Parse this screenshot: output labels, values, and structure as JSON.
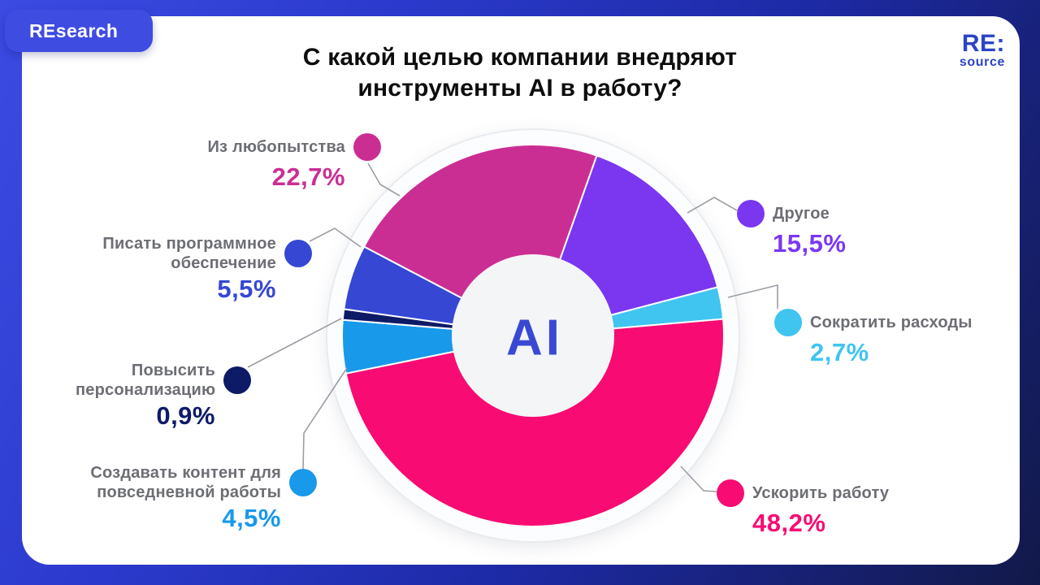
{
  "page": {
    "badge": "REsearch",
    "title_line1": "С какой целью компании внедряют",
    "title_line2": "инструменты AI в работу?",
    "logo_top": "RE:",
    "logo_bottom": "source"
  },
  "chart_data": {
    "type": "pie",
    "donut": true,
    "title": "С какой целью компании внедряют инструменты AI в работу?",
    "center_label": "AI",
    "unit": "%",
    "start_angle_deg": 19.5,
    "direction": "clockwise",
    "legend_position": "callouts-around-chart",
    "slices": [
      {
        "label": "Другое",
        "value": 15.5,
        "display": "15,5%",
        "color": "#7b36f0"
      },
      {
        "label": "Сократить расходы",
        "value": 2.7,
        "display": "2,7%",
        "color": "#40c4f0"
      },
      {
        "label": "Ускорить работу",
        "value": 48.2,
        "display": "48,2%",
        "color": "#f80b72"
      },
      {
        "label": "Создавать контент для повседневной работы",
        "value": 4.5,
        "display": "4,5%",
        "color": "#1899ea"
      },
      {
        "label": "Повысить персонализацию",
        "value": 0.9,
        "display": "0,9%",
        "color": "#0d1a66"
      },
      {
        "label": "Писать программное обеспечение",
        "value": 5.5,
        "display": "5,5%",
        "color": "#3547d3"
      },
      {
        "label": "Из любопытства",
        "value": 22.7,
        "display": "22,7%",
        "color": "#cb2e93"
      }
    ]
  }
}
